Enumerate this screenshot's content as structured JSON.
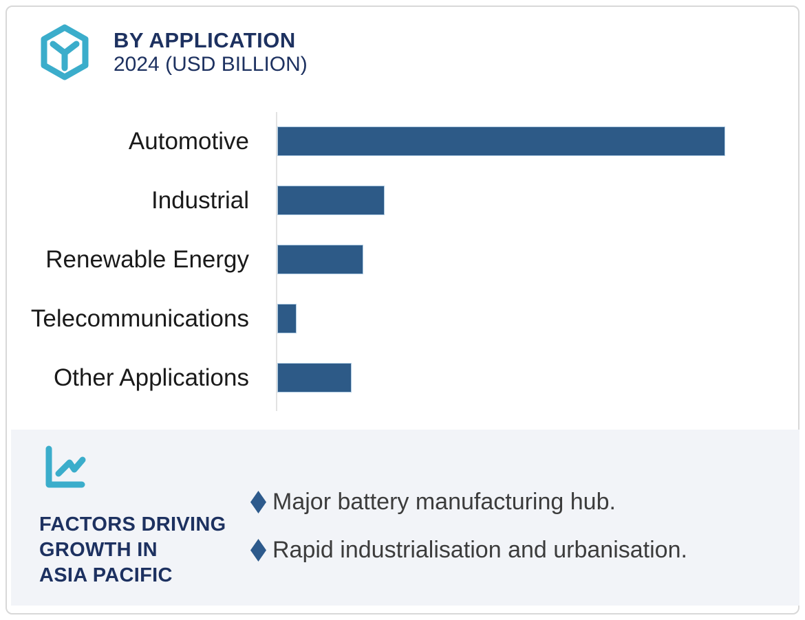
{
  "header": {
    "title": "BY APPLICATION",
    "subtitle": "2024 (USD BILLION)",
    "icon": "hexagon-cube-icon"
  },
  "chart_data": {
    "type": "bar",
    "orientation": "horizontal",
    "title": "BY APPLICATION",
    "subtitle": "2024 (USD BILLION)",
    "categories": [
      "Automotive",
      "Industrial",
      "Renewable Energy",
      "Telecommunications",
      "Other Applications"
    ],
    "values": [
      100,
      23.7,
      18.9,
      4.0,
      16.3
    ],
    "values_note": "relative units (% of longest bar); numeric axis ticks are not shown in the image",
    "unit": "USD Billion (scale not labeled)",
    "xlabel": "",
    "ylabel": "",
    "grid": false,
    "legend": false,
    "bar_color": "#2d5a87",
    "bar_border_color": "#aecbe2",
    "axis_line_color": "#e2e2e2"
  },
  "panel": {
    "icon": "line-chart-icon",
    "heading_lines": [
      "FACTORS DRIVING",
      "GROWTH IN",
      "ASIA PACIFIC"
    ],
    "bullet_marker": "diamond-icon",
    "bullets": [
      "Major battery manufacturing hub.",
      "Rapid industrialisation and urbanisation."
    ]
  },
  "colors": {
    "navy": "#1d3160",
    "teal": "#3badcb",
    "bar": "#2d5a87",
    "label_text": "#1a1a1a",
    "bullet_text": "#3c3c3c",
    "panel_bg": "#f2f4f8",
    "card_border": "#d8d8d8",
    "diamond": "#2d5a8c"
  }
}
